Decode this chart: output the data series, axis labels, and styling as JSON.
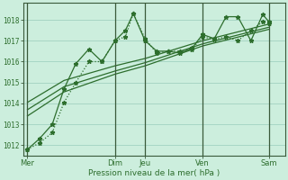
{
  "xlabel": "Pression niveau de la mer( hPa )",
  "bg_color": "#cceedd",
  "plot_bg_color": "#cceedd",
  "grid_color": "#99ccbb",
  "line_color": "#2d6e2d",
  "spine_color": "#3a5a3a",
  "ylim": [
    1011.5,
    1018.8
  ],
  "yticks": [
    1012,
    1013,
    1014,
    1015,
    1016,
    1017,
    1018
  ],
  "xlim": [
    0,
    10.0
  ],
  "day_labels": [
    "Mer",
    "Dim",
    "Jeu",
    "Ven",
    "Sam"
  ],
  "day_positions": [
    0.15,
    3.5,
    4.65,
    6.85,
    9.4
  ],
  "vline_positions": [
    0.15,
    3.5,
    4.65,
    6.85,
    9.4
  ],
  "line1_x": [
    0.15,
    0.6,
    1.1,
    1.55,
    2.0,
    2.5,
    3.0,
    3.5,
    3.9,
    4.2,
    4.65,
    5.1,
    5.55,
    6.0,
    6.45,
    6.85,
    7.3,
    7.75,
    8.2,
    8.7,
    9.15,
    9.4
  ],
  "line1_y": [
    1011.8,
    1012.3,
    1013.0,
    1014.7,
    1015.9,
    1016.6,
    1016.0,
    1017.0,
    1017.5,
    1018.3,
    1017.0,
    1016.5,
    1016.5,
    1016.4,
    1016.65,
    1017.3,
    1017.1,
    1018.15,
    1018.15,
    1017.0,
    1018.25,
    1017.9
  ],
  "line2_x": [
    0.15,
    0.6,
    1.1,
    1.55,
    2.0,
    2.5,
    3.0,
    3.5,
    3.9,
    4.2,
    4.65,
    5.1,
    5.55,
    6.0,
    6.45,
    6.85,
    7.3,
    7.75,
    8.2,
    8.7,
    9.15,
    9.4
  ],
  "line2_y": [
    1011.8,
    1012.1,
    1012.6,
    1014.05,
    1015.0,
    1016.0,
    1016.0,
    1017.0,
    1017.2,
    1018.3,
    1017.1,
    1016.4,
    1016.5,
    1016.5,
    1016.6,
    1017.2,
    1017.05,
    1017.2,
    1017.0,
    1017.5,
    1017.9,
    1017.85
  ],
  "line3_x": [
    0.15,
    1.55,
    3.5,
    4.65,
    6.85,
    9.4
  ],
  "line3_y": [
    1014.05,
    1015.1,
    1015.8,
    1016.15,
    1017.0,
    1017.8
  ],
  "line4_x": [
    0.15,
    1.55,
    3.5,
    4.65,
    6.85,
    9.4
  ],
  "line4_y": [
    1013.7,
    1014.8,
    1015.55,
    1015.95,
    1016.85,
    1017.65
  ],
  "line5_x": [
    0.15,
    1.55,
    3.5,
    4.65,
    6.85,
    9.4
  ],
  "line5_y": [
    1013.4,
    1014.55,
    1015.4,
    1015.8,
    1016.75,
    1017.55
  ]
}
